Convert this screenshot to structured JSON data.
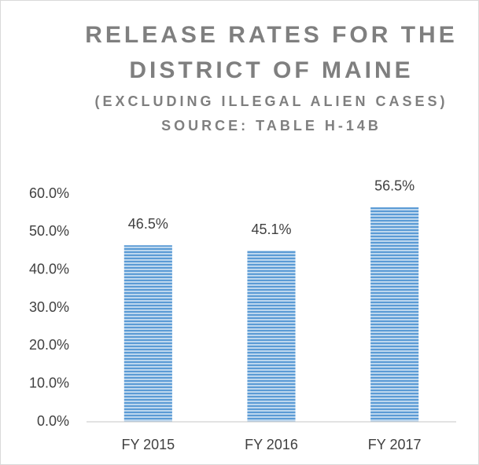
{
  "chart_data": {
    "type": "bar",
    "title": "RELEASE RATES FOR THE DISTRICT OF MAINE",
    "subtitle": "(EXCLUDING ILLEGAL ALIEN CASES)",
    "source": "SOURCE: TABLE H-14B",
    "categories": [
      "FY 2015",
      "FY 2016",
      "FY 2017"
    ],
    "values": [
      46.5,
      45.1,
      56.5
    ],
    "value_labels": [
      "46.5%",
      "45.1%",
      "56.5%"
    ],
    "color": "#5b9bd5",
    "ylim": [
      0,
      60
    ],
    "yticks": [
      {
        "value": 0,
        "label": "0.0%"
      },
      {
        "value": 10,
        "label": "10.0%"
      },
      {
        "value": 20,
        "label": "20.0%"
      },
      {
        "value": 30,
        "label": "30.0%"
      },
      {
        "value": 40,
        "label": "40.0%"
      },
      {
        "value": 50,
        "label": "50.0%"
      },
      {
        "value": 60,
        "label": "60.0%"
      }
    ],
    "grid": false
  }
}
